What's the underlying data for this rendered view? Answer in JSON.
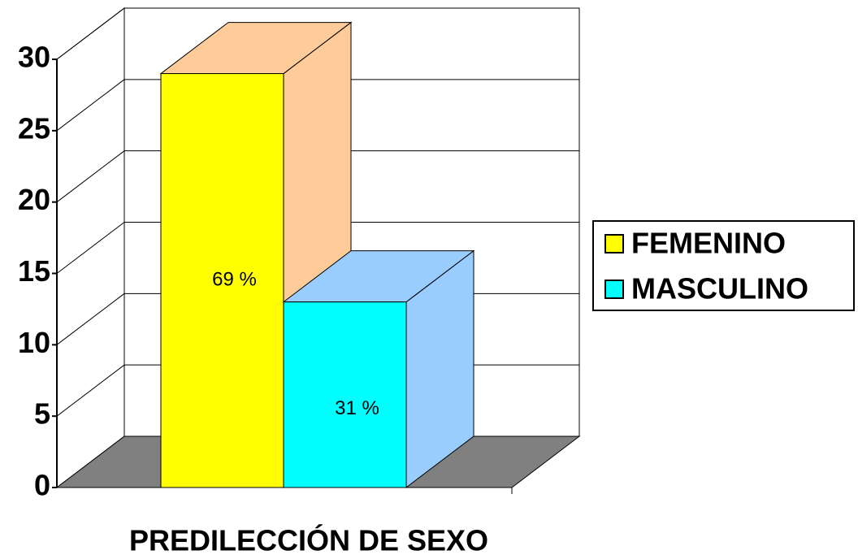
{
  "chart_data": {
    "type": "bar3d",
    "xlabel": "PREDILECCIÓN DE SEXO",
    "series": [
      {
        "name": "FEMENINO",
        "color": "#ffff00",
        "side_color": "#ffcc99",
        "values": [
          29
        ],
        "value_labels": [
          "69 %"
        ]
      },
      {
        "name": "MASCULINO",
        "color": "#00ffff",
        "side_color": "#99ccff",
        "values": [
          13
        ],
        "value_labels": [
          "31 %"
        ]
      }
    ],
    "ylim": [
      0,
      30
    ],
    "yticks": [
      0,
      5,
      10,
      15,
      20,
      25,
      30
    ],
    "grid": true,
    "floor_color": "#808080",
    "legend": "right"
  }
}
